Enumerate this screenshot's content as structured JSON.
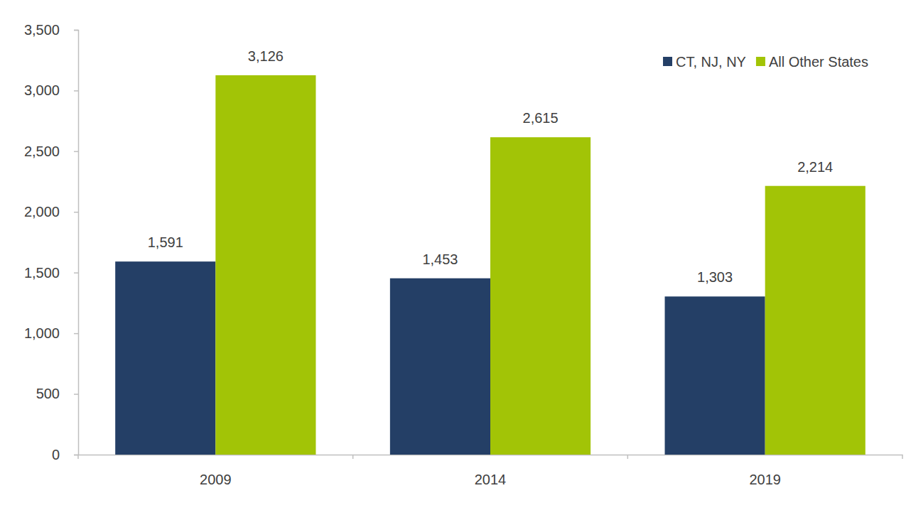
{
  "chart_data": {
    "type": "bar",
    "categories": [
      "2009",
      "2014",
      "2019"
    ],
    "series": [
      {
        "name": "CT, NJ, NY",
        "color": "#243f66",
        "values": [
          1591,
          1453,
          1303
        ],
        "value_labels": [
          "1,591",
          "1,453",
          "1,303"
        ]
      },
      {
        "name": "All Other States",
        "color": "#a2c406",
        "values": [
          3126,
          2615,
          2214
        ],
        "value_labels": [
          "3,126",
          "2,615",
          "2,214"
        ]
      }
    ],
    "ylim": [
      0,
      3500
    ],
    "yticks": [
      0,
      500,
      {
        "value": 1000,
        "label": "1,000"
      },
      {
        "value": 1500,
        "label": "1,500"
      },
      {
        "value": 2000,
        "label": "2,000"
      },
      {
        "value": 2500,
        "label": "2,500"
      },
      {
        "value": 3000,
        "label": "3,000"
      },
      {
        "value": 3500,
        "label": "3,500"
      }
    ],
    "grid": false,
    "legend": "top-right",
    "data_labels": true
  }
}
